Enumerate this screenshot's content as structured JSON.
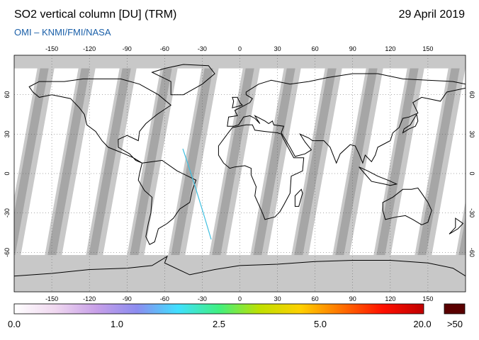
{
  "header": {
    "title": "SO2 vertical column [DU] (TRM)",
    "date": "29 April 2019",
    "credit": "OMI  –  KNMI/FMI/NASA"
  },
  "map": {
    "projection": "equirectangular",
    "lon_range": [
      -180,
      180
    ],
    "lat_range": [
      -90,
      90
    ],
    "lon_ticks": [
      "-150",
      "-120",
      "-90",
      "-60",
      "-30",
      "0",
      "30",
      "60",
      "90",
      "120",
      "150"
    ],
    "lon_tick_values": [
      -150,
      -120,
      -90,
      -60,
      -30,
      0,
      30,
      60,
      90,
      120,
      150
    ],
    "lat_ticks": [
      "60",
      "30",
      "0",
      "-30",
      "-60"
    ],
    "lat_tick_values": [
      60,
      30,
      0,
      -30,
      -60
    ],
    "colors": {
      "no_data": "#c8c8c8",
      "swath_gap": "#a6a6a6",
      "background_data": "#ffffff",
      "coastline": "#000000"
    }
  },
  "colorbar": {
    "labels": [
      "0.0",
      "1.0",
      "2.5",
      "5.0",
      "20.0"
    ],
    "overflow_label": ">50",
    "overflow_color": "#5a0000",
    "gradient": [
      "#ffffff",
      "#f0d8f0",
      "#c8a0e8",
      "#8c8cf0",
      "#40e0ff",
      "#40f080",
      "#c0e000",
      "#ffd000",
      "#ff7000",
      "#ff1000",
      "#c00000"
    ]
  }
}
